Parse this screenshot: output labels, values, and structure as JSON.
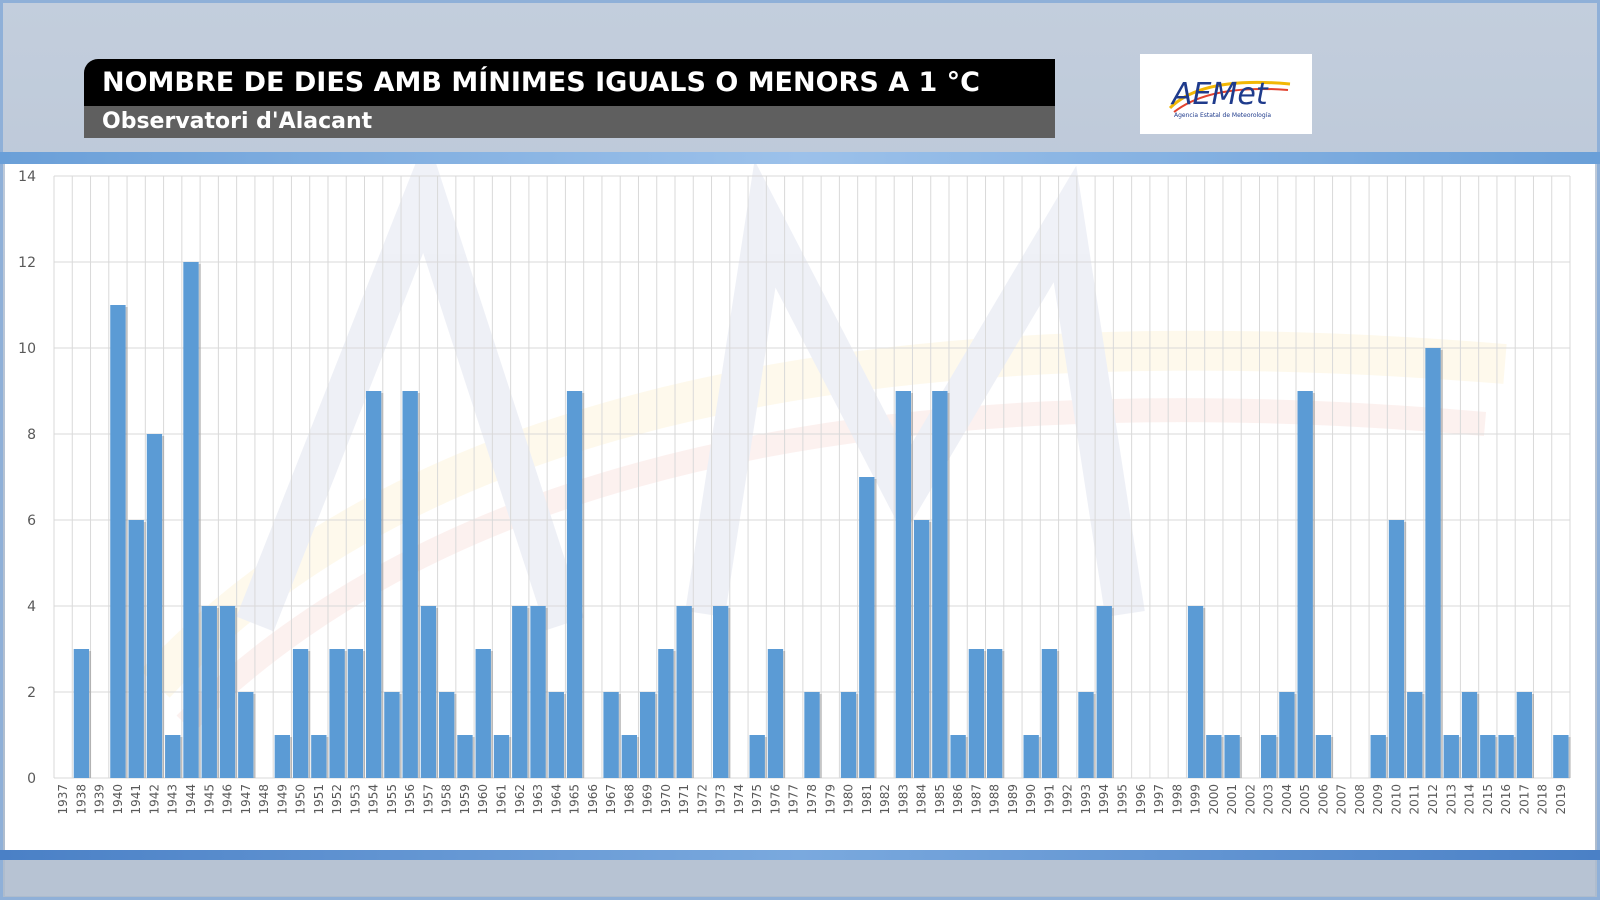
{
  "header": {
    "title": "NOMBRE DE DIES AMB MÍNIMES IGUALS O MENORS A 1 °C",
    "subtitle": "Observatori d'Alacant"
  },
  "logo": {
    "text": "AEMet",
    "caption": "Agencia Estatal de Meteorología",
    "icon": "aemet-logo-icon"
  },
  "colors": {
    "bar": "#5b9bd5",
    "grid": "#d9d9d9",
    "title_bg": "#000000",
    "subtitle_bg": "#5f5f5f",
    "accent_band": "#6a9fd8"
  },
  "chart_data": {
    "type": "bar",
    "title": "NOMBRE DE DIES AMB MÍNIMES IGUALS O MENORS A 1 °C",
    "subtitle": "Observatori d'Alacant",
    "xlabel": "",
    "ylabel": "",
    "ylim": [
      0,
      14
    ],
    "yticks": [
      0,
      2,
      4,
      6,
      8,
      10,
      12,
      14
    ],
    "grid": true,
    "legend": "none",
    "categories": [
      "1937",
      "1938",
      "1939",
      "1940",
      "1941",
      "1942",
      "1943",
      "1944",
      "1945",
      "1946",
      "1947",
      "1948",
      "1949",
      "1950",
      "1951",
      "1952",
      "1953",
      "1954",
      "1955",
      "1956",
      "1957",
      "1958",
      "1959",
      "1960",
      "1961",
      "1962",
      "1963",
      "1964",
      "1965",
      "1966",
      "1967",
      "1968",
      "1969",
      "1970",
      "1971",
      "1972",
      "1973",
      "1974",
      "1975",
      "1976",
      "1977",
      "1978",
      "1979",
      "1980",
      "1981",
      "1982",
      "1983",
      "1984",
      "1985",
      "1986",
      "1987",
      "1988",
      "1989",
      "1990",
      "1991",
      "1992",
      "1993",
      "1994",
      "1995",
      "1996",
      "1997",
      "1998",
      "1999",
      "2000",
      "2001",
      "2002",
      "2003",
      "2004",
      "2005",
      "2006",
      "2007",
      "2008",
      "2009",
      "2010",
      "2011",
      "2012",
      "2013",
      "2014",
      "2015",
      "2016",
      "2017",
      "2018",
      "2019"
    ],
    "values": [
      0,
      3,
      0,
      11,
      6,
      8,
      1,
      12,
      4,
      4,
      2,
      0,
      1,
      3,
      1,
      3,
      3,
      9,
      2,
      9,
      4,
      2,
      1,
      3,
      1,
      4,
      4,
      2,
      9,
      0,
      2,
      1,
      2,
      3,
      4,
      0,
      4,
      0,
      1,
      3,
      0,
      2,
      0,
      2,
      7,
      0,
      9,
      6,
      9,
      1,
      3,
      3,
      0,
      1,
      3,
      0,
      2,
      4,
      0,
      0,
      0,
      0,
      4,
      1,
      1,
      0,
      1,
      2,
      9,
      1,
      0,
      0,
      1,
      6,
      2,
      10,
      1,
      2,
      1,
      1,
      2,
      0,
      1
    ]
  }
}
